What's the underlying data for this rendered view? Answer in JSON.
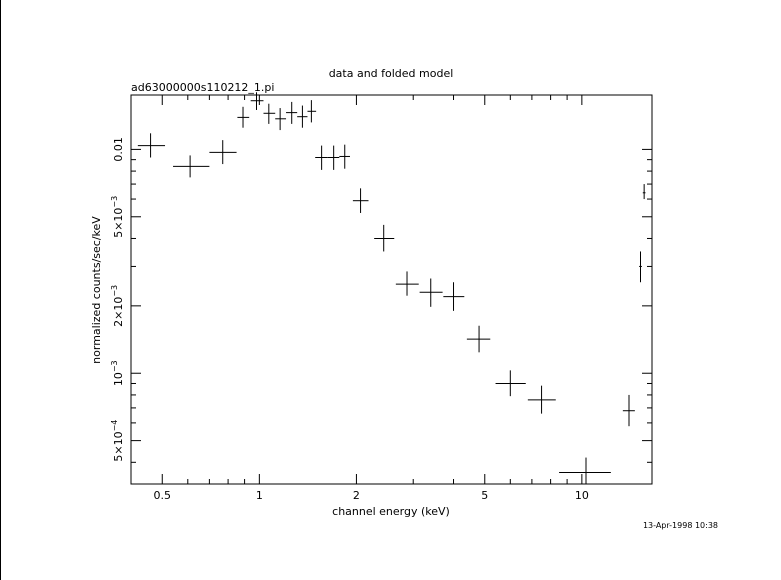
{
  "chart_data": {
    "type": "scatter",
    "title": "data and folded model",
    "subtitle": "ad63000000s110212_1.pi",
    "xlabel": "channel energy (keV)",
    "ylabel": "normalized counts/sec/keV",
    "timestamp": "13-Apr-1998 10:38",
    "x_scale": "log",
    "y_scale": "log",
    "xlim": [
      0.4,
      16.5
    ],
    "ylim": [
      0.00032,
      0.0175
    ],
    "x_ticks": [
      {
        "value": 0.5,
        "label": "0.5"
      },
      {
        "value": 1,
        "label": "1"
      },
      {
        "value": 2,
        "label": "2"
      },
      {
        "value": 5,
        "label": "5"
      },
      {
        "value": 10,
        "label": "10"
      }
    ],
    "y_ticks": [
      {
        "value": 0.0005,
        "mant": "5×10",
        "exp": "−4"
      },
      {
        "value": 0.001,
        "mant": "10",
        "exp": "−3"
      },
      {
        "value": 0.002,
        "mant": "2×10",
        "exp": "−3"
      },
      {
        "value": 0.005,
        "mant": "5×10",
        "exp": "−3"
      },
      {
        "value": 0.01,
        "mant": "0.01",
        "exp": ""
      }
    ],
    "grid": false,
    "legend": "none",
    "points": [
      {
        "x": 0.46,
        "xlo": 0.42,
        "xhi": 0.51,
        "y": 0.0104,
        "ylo": 0.0092,
        "yhi": 0.0118
      },
      {
        "x": 0.61,
        "xlo": 0.54,
        "xhi": 0.7,
        "y": 0.0084,
        "ylo": 0.0075,
        "yhi": 0.0094
      },
      {
        "x": 0.77,
        "xlo": 0.7,
        "xhi": 0.85,
        "y": 0.0097,
        "ylo": 0.0086,
        "yhi": 0.011
      },
      {
        "x": 0.89,
        "xlo": 0.855,
        "xhi": 0.93,
        "y": 0.0139,
        "ylo": 0.0125,
        "yhi": 0.0155
      },
      {
        "x": 0.98,
        "xlo": 0.94,
        "xhi": 1.03,
        "y": 0.0165,
        "ylo": 0.015,
        "yhi": 0.018
      },
      {
        "x": 1.07,
        "xlo": 1.03,
        "xhi": 1.12,
        "y": 0.0145,
        "ylo": 0.013,
        "yhi": 0.016
      },
      {
        "x": 1.16,
        "xlo": 1.12,
        "xhi": 1.21,
        "y": 0.0137,
        "ylo": 0.0122,
        "yhi": 0.0153
      },
      {
        "x": 1.26,
        "xlo": 1.21,
        "xhi": 1.31,
        "y": 0.0146,
        "ylo": 0.013,
        "yhi": 0.0163
      },
      {
        "x": 1.36,
        "xlo": 1.31,
        "xhi": 1.41,
        "y": 0.014,
        "ylo": 0.0125,
        "yhi": 0.0157
      },
      {
        "x": 1.45,
        "xlo": 1.41,
        "xhi": 1.5,
        "y": 0.0148,
        "ylo": 0.0132,
        "yhi": 0.0166
      },
      {
        "x": 1.56,
        "xlo": 1.49,
        "xhi": 1.63,
        "y": 0.0092,
        "ylo": 0.0081,
        "yhi": 0.0104
      },
      {
        "x": 1.7,
        "xlo": 1.63,
        "xhi": 1.77,
        "y": 0.0092,
        "ylo": 0.0081,
        "yhi": 0.0104
      },
      {
        "x": 1.84,
        "xlo": 1.77,
        "xhi": 1.91,
        "y": 0.0093,
        "ylo": 0.0082,
        "yhi": 0.0105
      },
      {
        "x": 2.06,
        "xlo": 1.95,
        "xhi": 2.18,
        "y": 0.0059,
        "ylo": 0.0052,
        "yhi": 0.0067
      },
      {
        "x": 2.43,
        "xlo": 2.27,
        "xhi": 2.62,
        "y": 0.004,
        "ylo": 0.0035,
        "yhi": 0.0046
      },
      {
        "x": 2.87,
        "xlo": 2.65,
        "xhi": 3.12,
        "y": 0.0025,
        "ylo": 0.00222,
        "yhi": 0.00285
      },
      {
        "x": 3.4,
        "xlo": 3.14,
        "xhi": 3.7,
        "y": 0.0023,
        "ylo": 0.00198,
        "yhi": 0.00265
      },
      {
        "x": 4.0,
        "xlo": 3.72,
        "xhi": 4.32,
        "y": 0.0022,
        "ylo": 0.0019,
        "yhi": 0.00255
      },
      {
        "x": 4.8,
        "xlo": 4.4,
        "xhi": 5.2,
        "y": 0.00142,
        "ylo": 0.00124,
        "yhi": 0.00163
      },
      {
        "x": 6.0,
        "xlo": 5.4,
        "xhi": 6.7,
        "y": 0.0009,
        "ylo": 0.00079,
        "yhi": 0.00103
      },
      {
        "x": 7.5,
        "xlo": 6.8,
        "xhi": 8.3,
        "y": 0.00076,
        "ylo": 0.00066,
        "yhi": 0.00088
      },
      {
        "x": 10.3,
        "xlo": 8.5,
        "xhi": 12.3,
        "y": 0.00036,
        "ylo": 0.00032,
        "yhi": 0.00042
      },
      {
        "x": 14.0,
        "xlo": 13.4,
        "xhi": 14.6,
        "y": 0.00068,
        "ylo": 0.00058,
        "yhi": 0.0008
      },
      {
        "x": 15.2,
        "xlo": 15.05,
        "xhi": 15.35,
        "y": 0.003,
        "ylo": 0.00255,
        "yhi": 0.0035
      },
      {
        "x": 15.6,
        "xlo": 15.45,
        "xhi": 15.75,
        "y": 0.0064,
        "ylo": 0.006,
        "yhi": 0.007
      }
    ]
  }
}
